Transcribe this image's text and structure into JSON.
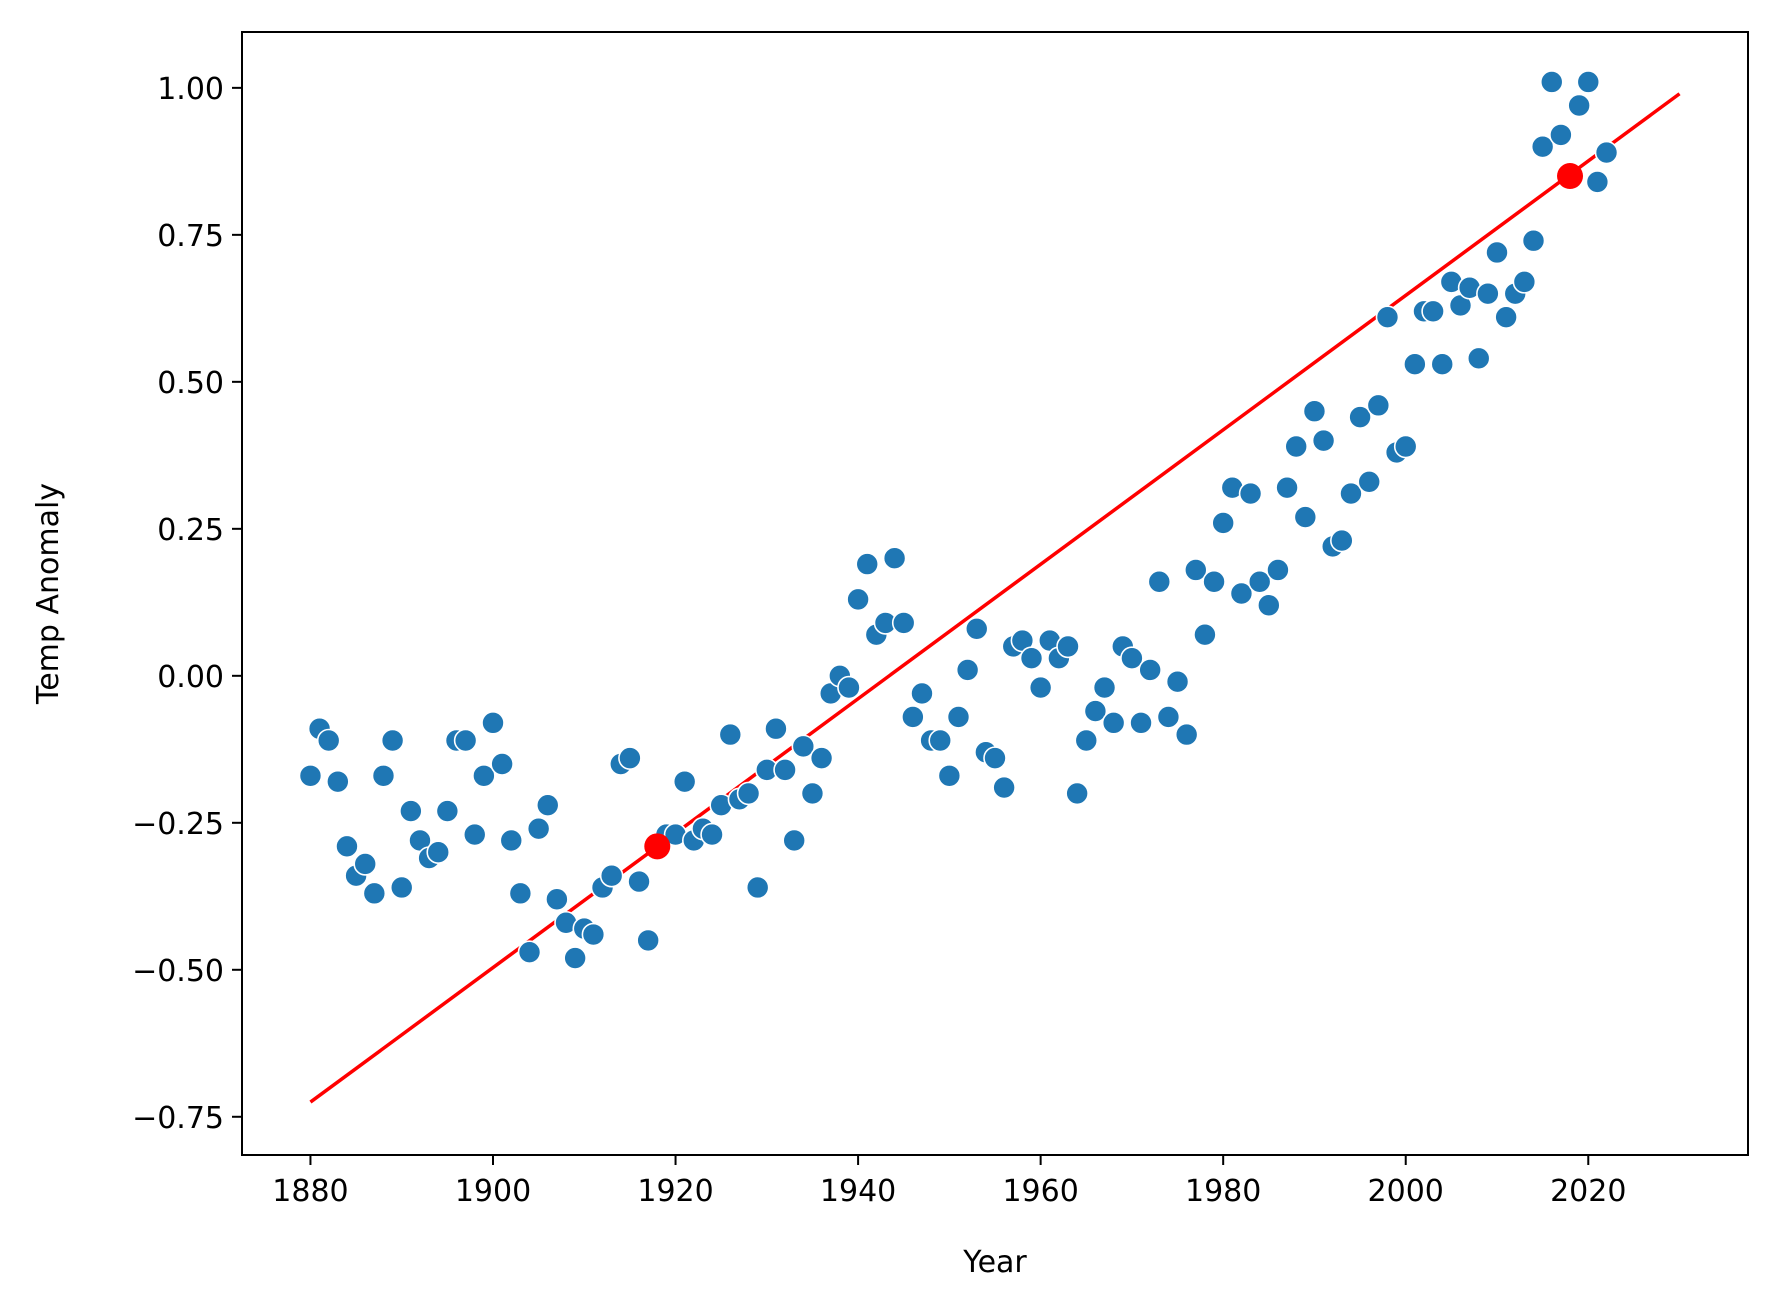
{
  "chart_data": {
    "type": "scatter",
    "xlabel": "Year",
    "ylabel": "Temp Anomaly",
    "xlim": [
      1872.5,
      2037.5
    ],
    "ylim": [
      -0.815,
      1.095
    ],
    "xticks": [
      1880,
      1900,
      1920,
      1940,
      1960,
      1980,
      2000,
      2020
    ],
    "xtick_labels": [
      "1880",
      "1900",
      "1920",
      "1940",
      "1960",
      "1980",
      "2000",
      "2020"
    ],
    "yticks": [
      -0.75,
      -0.5,
      -0.25,
      0.0,
      0.25,
      0.5,
      0.75,
      1.0
    ],
    "ytick_labels": [
      "−0.75",
      "−0.50",
      "−0.25",
      "0.00",
      "0.25",
      "0.50",
      "0.75",
      "1.00"
    ],
    "grid": false,
    "colors": {
      "points": "#1f77b4",
      "fit": "#ff0000"
    },
    "scatter": {
      "x": [
        1880,
        1881,
        1882,
        1883,
        1884,
        1885,
        1886,
        1887,
        1888,
        1889,
        1890,
        1891,
        1892,
        1893,
        1894,
        1895,
        1896,
        1897,
        1898,
        1899,
        1900,
        1901,
        1902,
        1903,
        1904,
        1905,
        1906,
        1907,
        1908,
        1909,
        1910,
        1911,
        1912,
        1913,
        1914,
        1915,
        1916,
        1917,
        1918,
        1919,
        1920,
        1921,
        1922,
        1923,
        1924,
        1925,
        1926,
        1927,
        1928,
        1929,
        1930,
        1931,
        1932,
        1933,
        1934,
        1935,
        1936,
        1937,
        1938,
        1939,
        1940,
        1941,
        1942,
        1943,
        1944,
        1945,
        1946,
        1947,
        1948,
        1949,
        1950,
        1951,
        1952,
        1953,
        1954,
        1955,
        1956,
        1957,
        1958,
        1959,
        1960,
        1961,
        1962,
        1963,
        1964,
        1965,
        1966,
        1967,
        1968,
        1969,
        1970,
        1971,
        1972,
        1973,
        1974,
        1975,
        1976,
        1977,
        1978,
        1979,
        1980,
        1981,
        1982,
        1983,
        1984,
        1985,
        1986,
        1987,
        1988,
        1989,
        1990,
        1991,
        1992,
        1993,
        1994,
        1995,
        1996,
        1997,
        1998,
        1999,
        2000,
        2001,
        2002,
        2003,
        2004,
        2005,
        2006,
        2007,
        2008,
        2009,
        2010,
        2011,
        2012,
        2013,
        2014,
        2015,
        2016,
        2017,
        2018,
        2019,
        2020,
        2021,
        2022
      ],
      "y": [
        -0.17,
        -0.09,
        -0.11,
        -0.18,
        -0.29,
        -0.34,
        -0.32,
        -0.37,
        -0.17,
        -0.11,
        -0.36,
        -0.23,
        -0.28,
        -0.31,
        -0.3,
        -0.23,
        -0.11,
        -0.11,
        -0.27,
        -0.17,
        -0.08,
        -0.15,
        -0.28,
        -0.37,
        -0.47,
        -0.26,
        -0.22,
        -0.38,
        -0.42,
        -0.48,
        -0.43,
        -0.44,
        -0.36,
        -0.34,
        -0.15,
        -0.14,
        -0.35,
        -0.45,
        -0.29,
        -0.27,
        -0.27,
        -0.18,
        -0.28,
        -0.26,
        -0.27,
        -0.22,
        -0.1,
        -0.21,
        -0.2,
        -0.36,
        -0.16,
        -0.09,
        -0.16,
        -0.28,
        -0.12,
        -0.2,
        -0.14,
        -0.03,
        0.0,
        -0.02,
        0.13,
        0.19,
        0.07,
        0.09,
        0.2,
        0.09,
        -0.07,
        -0.03,
        -0.11,
        -0.11,
        -0.17,
        -0.07,
        0.01,
        0.08,
        -0.13,
        -0.14,
        -0.19,
        0.05,
        0.06,
        0.03,
        -0.02,
        0.06,
        0.03,
        0.05,
        -0.2,
        -0.11,
        -0.06,
        -0.02,
        -0.08,
        0.05,
        0.03,
        -0.08,
        0.01,
        0.16,
        -0.07,
        -0.01,
        -0.1,
        0.18,
        0.07,
        0.16,
        0.26,
        0.32,
        0.14,
        0.31,
        0.16,
        0.12,
        0.18,
        0.32,
        0.39,
        0.27,
        0.45,
        0.4,
        0.22,
        0.23,
        0.31,
        0.44,
        0.33,
        0.46,
        0.61,
        0.38,
        0.39,
        0.53,
        0.62,
        0.62,
        0.53,
        0.67,
        0.63,
        0.66,
        0.54,
        0.65,
        0.72,
        0.61,
        0.65,
        0.67,
        0.74,
        0.9,
        1.01,
        0.92,
        0.85,
        0.97,
        1.01,
        0.84,
        0.89
      ]
    },
    "fit_line": {
      "x": [
        1880,
        2030
      ],
      "y": [
        -0.725,
        0.99
      ]
    },
    "highlight_points": {
      "x": [
        1918,
        2018
      ],
      "y": [
        -0.29,
        0.85
      ]
    }
  }
}
